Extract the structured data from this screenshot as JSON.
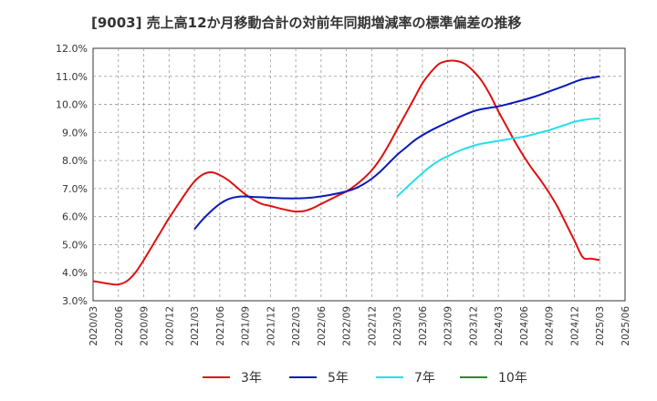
{
  "chart_data": {
    "type": "line",
    "title": "[9003]  売上高12か月移動合計の対前年同期増減率の標準偏差の推移",
    "xlabel": "",
    "ylabel": "",
    "ylim": [
      3.0,
      12.0
    ],
    "y_ticks": [
      "12.0%",
      "11.0%",
      "10.0%",
      "9.0%",
      "8.0%",
      "7.0%",
      "6.0%",
      "5.0%",
      "4.0%",
      "3.0%"
    ],
    "y_tick_values": [
      12,
      11,
      10,
      9,
      8,
      7,
      6,
      5,
      4,
      3
    ],
    "x_ticks": [
      "2020/03",
      "2020/06",
      "2020/09",
      "2020/12",
      "2021/03",
      "2021/06",
      "2021/09",
      "2021/12",
      "2022/03",
      "2022/06",
      "2022/09",
      "2022/12",
      "2023/03",
      "2023/06",
      "2023/09",
      "2023/12",
      "2024/03",
      "2024/06",
      "2024/09",
      "2024/12",
      "2025/03",
      "2025/06"
    ],
    "grid": true,
    "legend_position": "bottom",
    "series": [
      {
        "name": "3年",
        "color": "#dd1111",
        "x": [
          "2020/03",
          "2020/04",
          "2020/05",
          "2020/06",
          "2020/07",
          "2020/08",
          "2020/09",
          "2020/10",
          "2020/11",
          "2020/12",
          "2021/01",
          "2021/02",
          "2021/03",
          "2021/04",
          "2021/05",
          "2021/06",
          "2021/07",
          "2021/08",
          "2021/09",
          "2021/10",
          "2021/11",
          "2021/12",
          "2022/01",
          "2022/02",
          "2022/03",
          "2022/04",
          "2022/05",
          "2022/06",
          "2022/07",
          "2022/08",
          "2022/09",
          "2022/10",
          "2022/11",
          "2022/12",
          "2023/01",
          "2023/02",
          "2023/03",
          "2023/04",
          "2023/05",
          "2023/06",
          "2023/07",
          "2023/08",
          "2023/09",
          "2023/10",
          "2023/11",
          "2023/12",
          "2024/01",
          "2024/02",
          "2024/03",
          "2024/04",
          "2024/05",
          "2024/06",
          "2024/07",
          "2024/08",
          "2024/09",
          "2024/10",
          "2024/11",
          "2024/12",
          "2025/01",
          "2025/02",
          "2025/03"
        ],
        "values": [
          3.7,
          3.65,
          3.6,
          3.58,
          3.7,
          4.0,
          4.45,
          4.95,
          5.45,
          5.95,
          6.4,
          6.85,
          7.25,
          7.5,
          7.58,
          7.48,
          7.3,
          7.05,
          6.8,
          6.6,
          6.45,
          6.38,
          6.3,
          6.23,
          6.18,
          6.2,
          6.3,
          6.45,
          6.6,
          6.75,
          6.9,
          7.1,
          7.35,
          7.65,
          8.05,
          8.55,
          9.1,
          9.65,
          10.2,
          10.75,
          11.15,
          11.45,
          11.55,
          11.55,
          11.45,
          11.2,
          10.85,
          10.35,
          9.75,
          9.2,
          8.65,
          8.15,
          7.7,
          7.3,
          6.85,
          6.35,
          5.75,
          5.15,
          4.55,
          4.5,
          4.45
        ],
        "note_last": ""
      },
      {
        "name": "5年",
        "color": "#0a1ab8",
        "x": [
          "2021/03",
          "2021/04",
          "2021/05",
          "2021/06",
          "2021/07",
          "2021/08",
          "2021/09",
          "2021/10",
          "2021/11",
          "2021/12",
          "2022/01",
          "2022/02",
          "2022/03",
          "2022/04",
          "2022/05",
          "2022/06",
          "2022/07",
          "2022/08",
          "2022/09",
          "2022/10",
          "2022/11",
          "2022/12",
          "2023/01",
          "2023/02",
          "2023/03",
          "2023/04",
          "2023/05",
          "2023/06",
          "2023/07",
          "2023/08",
          "2023/09",
          "2023/10",
          "2023/11",
          "2023/12",
          "2024/01",
          "2024/02",
          "2024/03",
          "2024/04",
          "2024/05",
          "2024/06",
          "2024/07",
          "2024/08",
          "2024/09",
          "2024/10",
          "2024/11",
          "2024/12",
          "2025/01",
          "2025/02",
          "2025/03"
        ],
        "values": [
          5.55,
          5.9,
          6.2,
          6.45,
          6.62,
          6.7,
          6.72,
          6.7,
          6.69,
          6.67,
          6.66,
          6.65,
          6.65,
          6.66,
          6.68,
          6.72,
          6.77,
          6.83,
          6.9,
          7.0,
          7.15,
          7.35,
          7.6,
          7.9,
          8.2,
          8.45,
          8.7,
          8.9,
          9.07,
          9.22,
          9.36,
          9.5,
          9.63,
          9.75,
          9.83,
          9.88,
          9.93,
          10.0,
          10.08,
          10.16,
          10.25,
          10.35,
          10.46,
          10.57,
          10.68,
          10.8,
          10.9,
          10.95,
          11.0
        ]
      },
      {
        "name": "7年",
        "color": "#22e0e8",
        "x": [
          "2023/03",
          "2023/04",
          "2023/05",
          "2023/06",
          "2023/07",
          "2023/08",
          "2023/09",
          "2023/10",
          "2023/11",
          "2023/12",
          "2024/01",
          "2024/02",
          "2024/03",
          "2024/04",
          "2024/05",
          "2024/06",
          "2024/07",
          "2024/08",
          "2024/09",
          "2024/10",
          "2024/11",
          "2024/12",
          "2025/01",
          "2025/02",
          "2025/03"
        ],
        "values": [
          6.72,
          7.0,
          7.28,
          7.55,
          7.8,
          8.0,
          8.15,
          8.3,
          8.42,
          8.52,
          8.6,
          8.65,
          8.7,
          8.75,
          8.8,
          8.85,
          8.92,
          9.0,
          9.08,
          9.18,
          9.28,
          9.38,
          9.44,
          9.48,
          9.5
        ]
      },
      {
        "name": "10年",
        "color": "#2a8a2a",
        "x": [],
        "values": []
      }
    ]
  }
}
